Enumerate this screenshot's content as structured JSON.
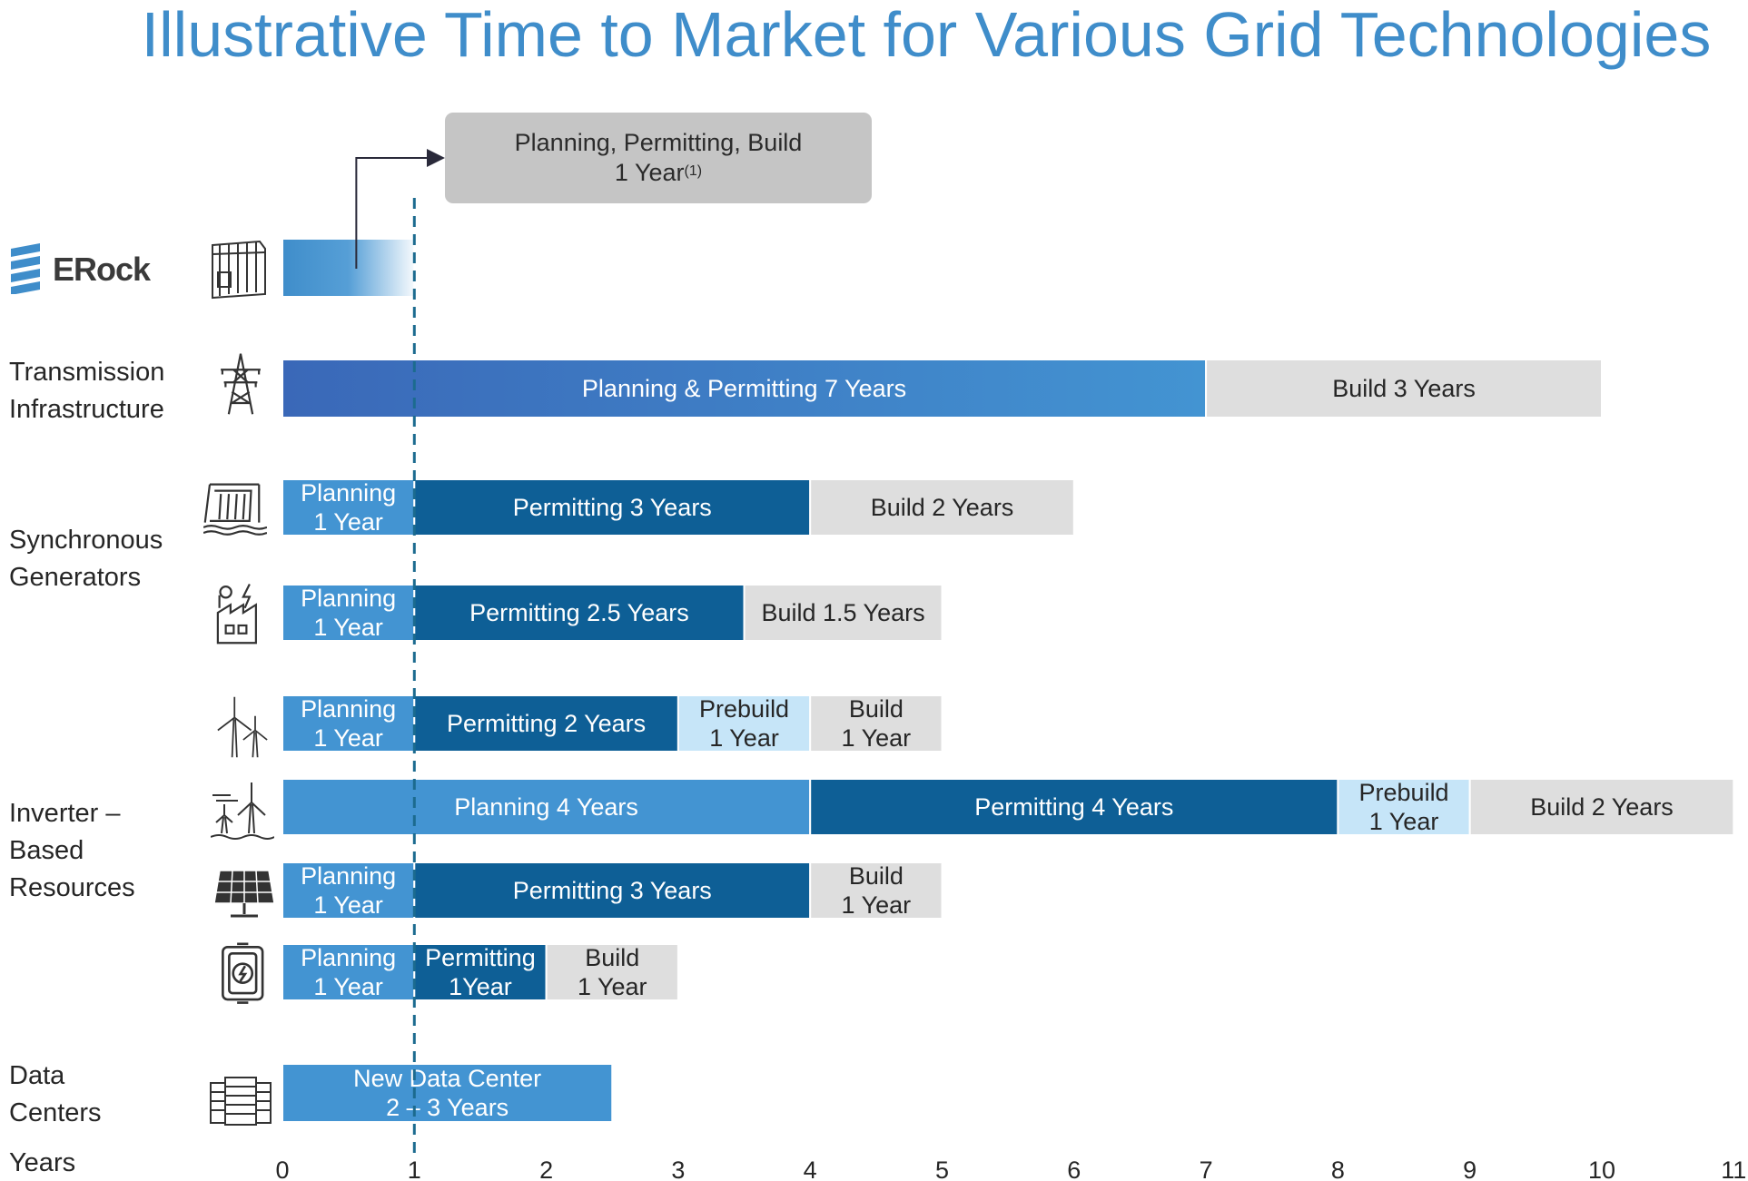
{
  "chart_data": {
    "type": "bar",
    "title": "Illustrative Time to Market for Various Grid Technologies",
    "xlabel": "Years",
    "xlim": [
      0,
      11
    ],
    "x_ticks": [
      "0",
      "1",
      "2",
      "3",
      "4",
      "5",
      "6",
      "7",
      "8",
      "9",
      "10",
      "11"
    ],
    "reference_line": {
      "x": 1,
      "style": "dashed"
    },
    "callout": {
      "line1": "Planning, Permitting, Build",
      "line2": "1 Year",
      "footnote": "(1)"
    },
    "brand": {
      "name": "ERock"
    },
    "categories": [
      {
        "label": [
          "Transmission",
          "Infrastructure"
        ]
      },
      {
        "label": [
          "Synchronous",
          "Generators"
        ]
      },
      {
        "label": [
          "Inverter –",
          "Based",
          "Resources"
        ]
      },
      {
        "label": [
          "Data",
          "Centers"
        ]
      }
    ],
    "rows": [
      {
        "icon": "container-icon",
        "segments": [
          {
            "start": 0,
            "end": 1,
            "phase": "erock",
            "label": []
          }
        ]
      },
      {
        "icon": "transmission-tower-icon",
        "segments": [
          {
            "start": 0,
            "end": 7,
            "phase": "planning-permitting",
            "label": [
              "Planning & Permitting 7 Years"
            ]
          },
          {
            "start": 7,
            "end": 10,
            "phase": "build",
            "label": [
              "Build 3 Years"
            ]
          }
        ]
      },
      {
        "icon": "hydro-dam-icon",
        "segments": [
          {
            "start": 0,
            "end": 1,
            "phase": "planning",
            "label": [
              "Planning",
              "1 Year"
            ]
          },
          {
            "start": 1,
            "end": 4,
            "phase": "permitting",
            "label": [
              "Permitting 3 Years"
            ]
          },
          {
            "start": 4,
            "end": 6,
            "phase": "build",
            "label": [
              "Build 2 Years"
            ]
          }
        ]
      },
      {
        "icon": "factory-icon",
        "segments": [
          {
            "start": 0,
            "end": 1,
            "phase": "planning",
            "label": [
              "Planning",
              "1 Year"
            ]
          },
          {
            "start": 1,
            "end": 3.5,
            "phase": "permitting",
            "label": [
              "Permitting 2.5 Years"
            ]
          },
          {
            "start": 3.5,
            "end": 5,
            "phase": "build",
            "label": [
              "Build 1.5 Years"
            ]
          }
        ]
      },
      {
        "icon": "wind-turbine-icon",
        "segments": [
          {
            "start": 0,
            "end": 1,
            "phase": "planning",
            "label": [
              "Planning",
              "1 Year"
            ]
          },
          {
            "start": 1,
            "end": 3,
            "phase": "permitting",
            "label": [
              "Permitting 2 Years"
            ]
          },
          {
            "start": 3,
            "end": 4,
            "phase": "prebuild",
            "label": [
              "Prebuild",
              "1 Year"
            ]
          },
          {
            "start": 4,
            "end": 5,
            "phase": "build",
            "label": [
              "Build",
              "1 Year"
            ]
          }
        ]
      },
      {
        "icon": "offshore-wind-icon",
        "segments": [
          {
            "start": 0,
            "end": 4,
            "phase": "planning",
            "label": [
              "Planning 4 Years"
            ]
          },
          {
            "start": 4,
            "end": 8,
            "phase": "permitting",
            "label": [
              "Permitting 4 Years"
            ]
          },
          {
            "start": 8,
            "end": 9,
            "phase": "prebuild",
            "label": [
              "Prebuild",
              "1 Year"
            ]
          },
          {
            "start": 9,
            "end": 11,
            "phase": "build",
            "label": [
              "Build 2 Years"
            ]
          }
        ]
      },
      {
        "icon": "solar-panel-icon",
        "segments": [
          {
            "start": 0,
            "end": 1,
            "phase": "planning",
            "label": [
              "Planning",
              "1 Year"
            ]
          },
          {
            "start": 1,
            "end": 4,
            "phase": "permitting",
            "label": [
              "Permitting 3 Years"
            ]
          },
          {
            "start": 4,
            "end": 5,
            "phase": "build",
            "label": [
              "Build",
              "1 Year"
            ]
          }
        ]
      },
      {
        "icon": "battery-icon",
        "segments": [
          {
            "start": 0,
            "end": 1,
            "phase": "planning",
            "label": [
              "Planning",
              "1 Year"
            ]
          },
          {
            "start": 1,
            "end": 2,
            "phase": "permitting",
            "label": [
              "Permitting",
              "1Year"
            ]
          },
          {
            "start": 2,
            "end": 3,
            "phase": "build",
            "label": [
              "Build",
              "1 Year"
            ]
          }
        ]
      },
      {
        "icon": "server-rack-icon",
        "segments": [
          {
            "start": 0,
            "end": 2.5,
            "phase": "data-center",
            "label": [
              "New Data Center",
              "2 – 3 Years"
            ]
          }
        ]
      }
    ],
    "colors": {
      "planning": "#4394d2",
      "planning-permitting": "#3f74be",
      "permitting": "#0e5f96",
      "prebuild": "#c6e5f8",
      "build": "#dedede",
      "data-center": "#4394d2",
      "erock": "#3f8dca",
      "title": "#3f8dca"
    }
  }
}
